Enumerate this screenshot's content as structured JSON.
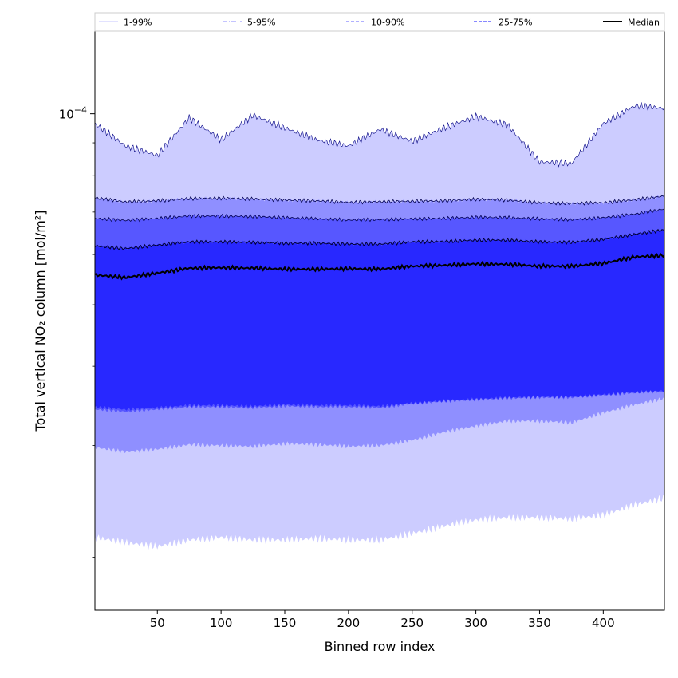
{
  "chart_data": {
    "type": "area",
    "xlabel": "Binned row index",
    "ylabel": "Total vertical NO₂ column [mol/m²]",
    "xlim": [
      1,
      448
    ],
    "ylim": [
      1.65e-05,
      0.000135
    ],
    "yscale": "log",
    "x_ticks": [
      50,
      100,
      150,
      200,
      250,
      300,
      350,
      400
    ],
    "y_ticks": [
      {
        "value": 0.0001,
        "base": "10",
        "exponent": "−4"
      }
    ],
    "grid": false,
    "legend": {
      "placement": "top",
      "entries": [
        {
          "label": "1-99%",
          "style": "solid",
          "color": "#d0d0ff"
        },
        {
          "label": "5-95%",
          "style": "dashdot",
          "color": "#a0a0ff"
        },
        {
          "label": "10-90%",
          "style": "dashed",
          "color": "#8080ff"
        },
        {
          "label": "25-75%",
          "style": "dashed",
          "color": "#4040ff"
        },
        {
          "label": "Median",
          "style": "solid",
          "color": "#000000"
        }
      ]
    },
    "bands": [
      {
        "name": "1-99%",
        "fill": "#ccccff",
        "x": [
          1,
          25,
          50,
          75,
          100,
          125,
          150,
          175,
          200,
          225,
          250,
          275,
          300,
          325,
          350,
          375,
          400,
          425,
          448
        ],
        "lower": [
          2.15e-05,
          2.11e-05,
          2.08e-05,
          2.13e-05,
          2.15e-05,
          2.13e-05,
          2.13e-05,
          2.14e-05,
          2.13e-05,
          2.13e-05,
          2.18e-05,
          2.24e-05,
          2.29e-05,
          2.31e-05,
          2.31e-05,
          2.3e-05,
          2.33e-05,
          2.42e-05,
          2.48e-05
        ],
        "upper": [
          9.65e-05,
          8.9e-05,
          8.6e-05,
          9.85e-05,
          9.1e-05,
          9.95e-05,
          9.5e-05,
          9.1e-05,
          8.9e-05,
          9.45e-05,
          9.05e-05,
          9.5e-05,
          9.9e-05,
          9.6e-05,
          8.4e-05,
          8.35e-05,
          9.65e-05,
          0.000103,
          0.000102
        ]
      },
      {
        "name": "5-95%",
        "fill": "#8f8fff",
        "x": [
          1,
          25,
          50,
          75,
          100,
          125,
          150,
          175,
          200,
          225,
          250,
          275,
          300,
          325,
          350,
          375,
          400,
          425,
          448
        ],
        "lower": [
          2.98e-05,
          2.93e-05,
          2.96e-05,
          3.01e-05,
          3e-05,
          2.99e-05,
          3.02e-05,
          3.01e-05,
          2.99e-05,
          3e-05,
          3.06e-05,
          3.15e-05,
          3.22e-05,
          3.28e-05,
          3.28e-05,
          3.26e-05,
          3.38e-05,
          3.48e-05,
          3.56e-05
        ]
      },
      {
        "name": "10-90%",
        "fill": "#5757ff",
        "x": [
          1,
          25,
          50,
          75,
          100,
          125,
          150,
          175,
          200,
          225,
          250,
          275,
          300,
          325,
          350,
          375,
          400,
          425,
          448
        ],
        "lower": [
          3.42e-05,
          3.39e-05,
          3.42e-05,
          3.45e-05,
          3.45e-05,
          3.44e-05,
          3.46e-05,
          3.45e-05,
          3.45e-05,
          3.44e-05,
          3.49e-05,
          3.52e-05,
          3.54e-05,
          3.56e-05,
          3.57e-05,
          3.57e-05,
          3.6e-05,
          3.63e-05,
          3.65e-05
        ]
      },
      {
        "name": "25-75%",
        "fill": "#2828ff",
        "x": [
          1,
          25,
          50,
          75,
          100,
          125,
          150,
          175,
          200,
          225,
          250,
          275,
          300,
          325,
          350,
          375,
          400,
          425,
          448
        ],
        "lower": [
          3.45e-05,
          3.42e-05,
          3.44e-05,
          3.47e-05,
          3.47e-05,
          3.46e-05,
          3.48e-05,
          3.47e-05,
          3.47e-05,
          3.46e-05,
          3.5e-05,
          3.53e-05,
          3.55e-05,
          3.57e-05,
          3.58e-05,
          3.58e-05,
          3.61e-05,
          3.64e-05,
          3.66e-05
        ]
      }
    ],
    "series": [
      {
        "name": "5-95% upper",
        "x": [
          1,
          25,
          50,
          75,
          100,
          125,
          150,
          175,
          200,
          225,
          250,
          275,
          300,
          325,
          350,
          375,
          400,
          425,
          448
        ],
        "values": [
          7.37e-05,
          7.26e-05,
          7.29e-05,
          7.35e-05,
          7.36e-05,
          7.34e-05,
          7.31e-05,
          7.29e-05,
          7.25e-05,
          7.27e-05,
          7.28e-05,
          7.29e-05,
          7.33e-05,
          7.31e-05,
          7.24e-05,
          7.22e-05,
          7.24e-05,
          7.32e-05,
          7.42e-05
        ]
      },
      {
        "name": "10-90% upper",
        "x": [
          1,
          25,
          50,
          75,
          100,
          125,
          150,
          175,
          200,
          225,
          250,
          275,
          300,
          325,
          350,
          375,
          400,
          425,
          448
        ],
        "values": [
          6.84e-05,
          6.79e-05,
          6.84e-05,
          6.9e-05,
          6.9e-05,
          6.89e-05,
          6.86e-05,
          6.83e-05,
          6.8e-05,
          6.81e-05,
          6.83e-05,
          6.84e-05,
          6.87e-05,
          6.86e-05,
          6.83e-05,
          6.81e-05,
          6.86e-05,
          6.95e-05,
          7.08e-05
        ]
      },
      {
        "name": "25-75% upper",
        "x": [
          1,
          25,
          50,
          75,
          100,
          125,
          150,
          175,
          200,
          225,
          250,
          275,
          300,
          325,
          350,
          375,
          400,
          425,
          448
        ],
        "values": [
          6.19e-05,
          6.13e-05,
          6.21e-05,
          6.28e-05,
          6.28e-05,
          6.27e-05,
          6.25e-05,
          6.25e-05,
          6.23e-05,
          6.23e-05,
          6.28e-05,
          6.29e-05,
          6.32e-05,
          6.32e-05,
          6.28e-05,
          6.27e-05,
          6.34e-05,
          6.46e-05,
          6.56e-05
        ]
      },
      {
        "name": "Median",
        "x": [
          1,
          25,
          50,
          75,
          100,
          125,
          150,
          175,
          200,
          225,
          250,
          275,
          300,
          325,
          350,
          375,
          400,
          425,
          448
        ],
        "values": [
          5.57e-05,
          5.52e-05,
          5.61e-05,
          5.71e-05,
          5.72e-05,
          5.71e-05,
          5.69e-05,
          5.69e-05,
          5.7e-05,
          5.69e-05,
          5.75e-05,
          5.77e-05,
          5.8e-05,
          5.79e-05,
          5.75e-05,
          5.75e-05,
          5.81e-05,
          5.95e-05,
          5.98e-05
        ]
      }
    ]
  }
}
